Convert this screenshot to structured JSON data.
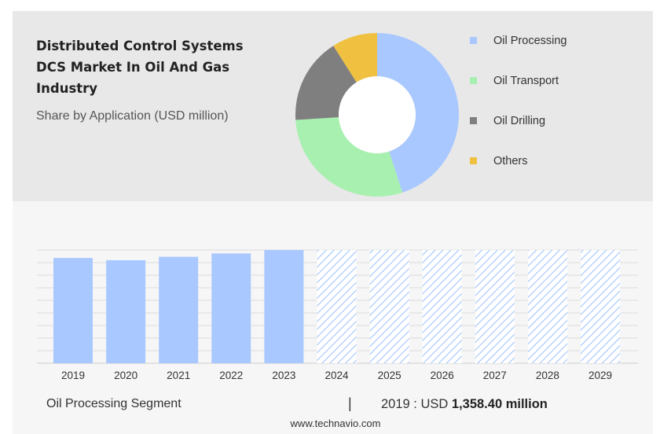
{
  "colors": {
    "oil_processing": "#a9c8ff",
    "oil_transport": "#a8f0b0",
    "oil_drilling": "#7f7f7f",
    "others": "#f0c040",
    "forecast_hatch": "#a9c8ff"
  },
  "header": {
    "title_lines": [
      "Distributed Control Systems",
      "DCS Market In Oil And Gas",
      "Industry"
    ],
    "subtitle": "Share by Application (USD million)"
  },
  "chart_data": [
    {
      "type": "pie",
      "style": "donut",
      "categories": [
        "Oil Processing",
        "Oil Transport",
        "Oil Drilling",
        "Others"
      ],
      "values": [
        45,
        29,
        17,
        9
      ],
      "legend_position": "right"
    },
    {
      "type": "bar",
      "categories": [
        "2019",
        "2020",
        "2021",
        "2022",
        "2023",
        "2024",
        "2025",
        "2026",
        "2027",
        "2028",
        "2029"
      ],
      "values": [
        93,
        91,
        94,
        97,
        100,
        100,
        100,
        100,
        100,
        100,
        100
      ],
      "forecast_from": "2024",
      "grid": true,
      "ylim": [
        0,
        100
      ]
    }
  ],
  "footer": {
    "segment_label": "Oil Processing Segment",
    "separator": "|",
    "year_label": "2019 : USD ",
    "value_label": "1,358.40 million",
    "source": "www.technavio.com"
  }
}
